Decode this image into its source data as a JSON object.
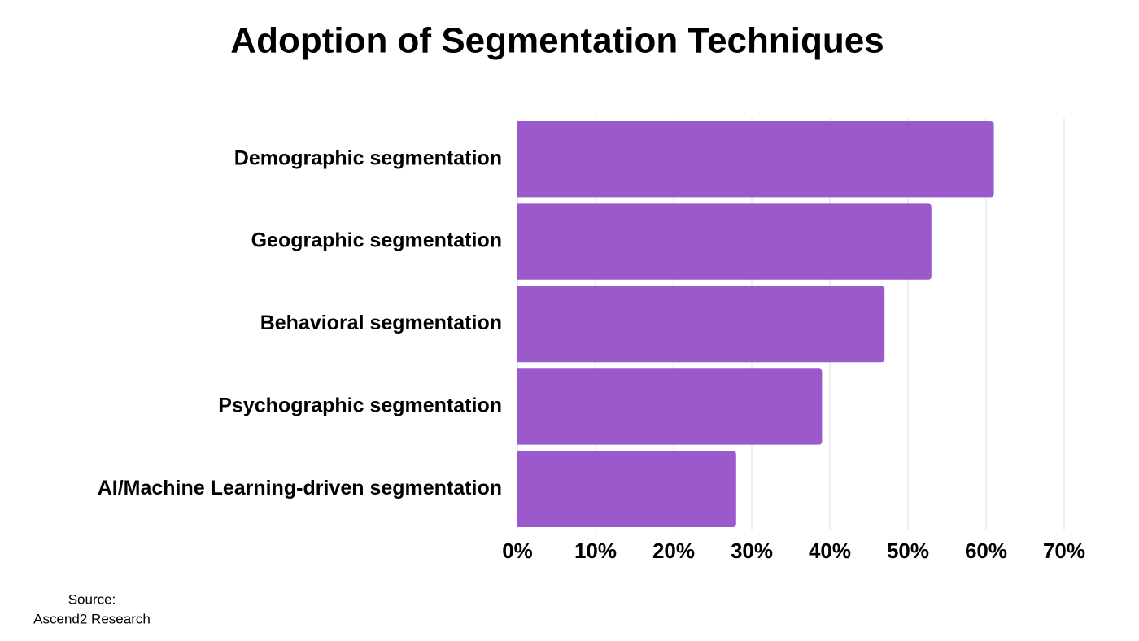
{
  "chart_data": {
    "type": "bar",
    "orientation": "horizontal",
    "title": "Adoption of Segmentation Techniques",
    "categories": [
      "Demographic segmentation",
      "Geographic segmentation",
      "Behavioral segmentation",
      "Psychographic segmentation",
      "AI/Machine Learning-driven segmentation"
    ],
    "values": [
      61,
      53,
      47,
      39,
      28
    ],
    "color": "#9b59cc",
    "xlim": [
      0,
      70
    ],
    "xticks": [
      {
        "value": 0,
        "label": "0%"
      },
      {
        "value": 10,
        "label": "10%"
      },
      {
        "value": 20,
        "label": "20%"
      },
      {
        "value": 30,
        "label": "30%"
      },
      {
        "value": 40,
        "label": "40%"
      },
      {
        "value": 50,
        "label": "50%"
      },
      {
        "value": 60,
        "label": "60%"
      },
      {
        "value": 70,
        "label": "70%"
      }
    ],
    "grid": true,
    "source_label": "Source:",
    "source": "Ascend2 Research"
  }
}
